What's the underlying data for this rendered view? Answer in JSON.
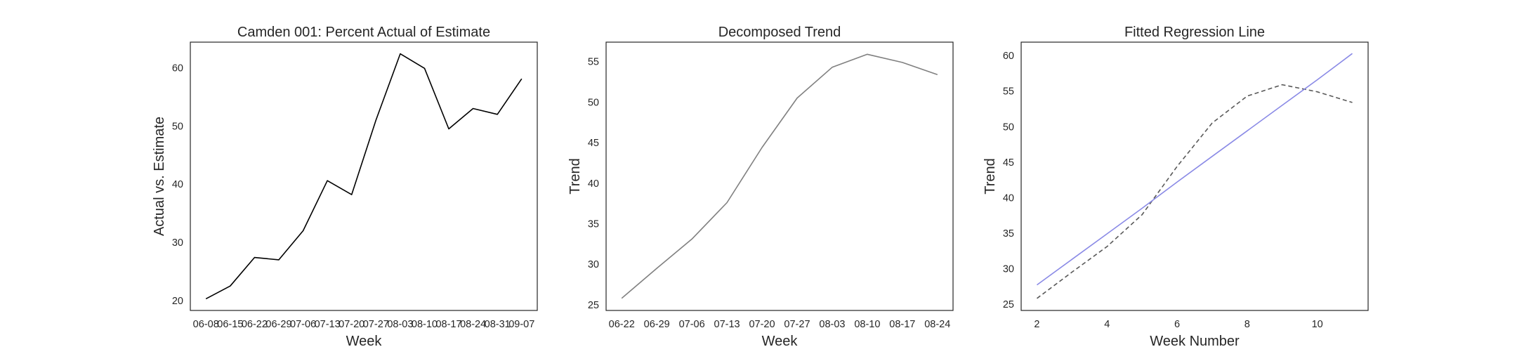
{
  "chart_data": [
    {
      "type": "line",
      "title": "Camden 001: Percent Actual of Estimate",
      "xlabel": "Week",
      "ylabel": "Actual vs. Estimate",
      "categories": [
        "06-08",
        "06-15",
        "06-22",
        "06-29",
        "07-06",
        "07-13",
        "07-20",
        "07-27",
        "08-03",
        "08-10",
        "08-17",
        "08-24",
        "08-31",
        "09-07"
      ],
      "series": [
        {
          "values": [
            20.3,
            22.5,
            27.4,
            27.0,
            32.0,
            40.6,
            38.2,
            51.0,
            62.4,
            59.9,
            49.5,
            53.0,
            52.0,
            58.1
          ],
          "color": "#000000",
          "style": "solid"
        }
      ],
      "ylim": [
        18.3,
        64.4
      ],
      "yticks": [
        20,
        30,
        40,
        50,
        60
      ],
      "grid": false
    },
    {
      "type": "line",
      "title": "Decomposed Trend",
      "xlabel": "Week",
      "ylabel": "Trend",
      "categories": [
        "06-22",
        "06-29",
        "07-06",
        "07-13",
        "07-20",
        "07-27",
        "08-03",
        "08-10",
        "08-17",
        "08-24"
      ],
      "series": [
        {
          "values": [
            25.8,
            29.5,
            33.1,
            37.6,
            44.4,
            50.5,
            54.3,
            55.9,
            54.9,
            53.4
          ],
          "color": "#808080",
          "style": "solid"
        }
      ],
      "ylim": [
        24.3,
        57.4
      ],
      "yticks": [
        25,
        30,
        35,
        40,
        45,
        50,
        55
      ],
      "grid": false
    },
    {
      "type": "line",
      "title": "Fitted Regression Line",
      "xlabel": "Week Number",
      "ylabel": "Trend",
      "x": [
        2,
        3,
        4,
        5,
        6,
        7,
        8,
        9,
        10,
        11
      ],
      "series": [
        {
          "values": [
            25.8,
            29.5,
            33.1,
            37.6,
            44.4,
            50.5,
            54.3,
            55.9,
            54.9,
            53.4
          ],
          "color": "#595959",
          "style": "dashed"
        },
        {
          "values": [
            27.7,
            31.3,
            34.9,
            38.5,
            42.2,
            45.8,
            49.4,
            53.0,
            56.6,
            60.3
          ],
          "color": "#8a8ae6",
          "style": "solid"
        }
      ],
      "xlim": [
        1.55,
        11.45
      ],
      "xticks": [
        2,
        4,
        6,
        8,
        10
      ],
      "ylim": [
        24.1,
        61.9
      ],
      "yticks": [
        25,
        30,
        35,
        40,
        45,
        50,
        55,
        60
      ],
      "grid": false
    }
  ]
}
